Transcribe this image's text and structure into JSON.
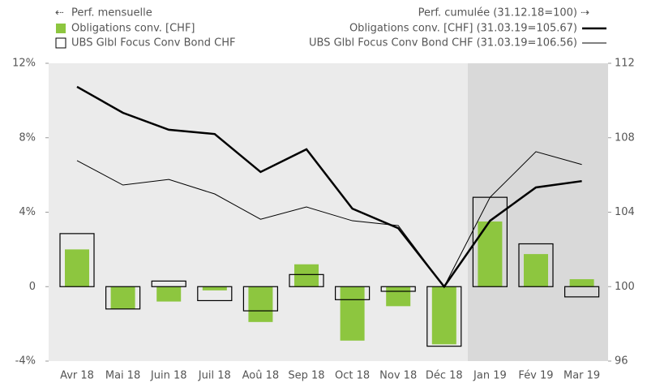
{
  "chart_data": {
    "type": "combo",
    "left_legend_title": "Perf. mensuelle",
    "right_legend_title": "Perf. cumulée (31.12.18=100)",
    "categories": [
      "Avr 18",
      "Mai 18",
      "Juin 18",
      "Juil 18",
      "Aoû 18",
      "Sep 18",
      "Oct 18",
      "Nov 18",
      "Déc 18",
      "Jan 19",
      "Fév 19",
      "Mar 19"
    ],
    "series": [
      {
        "name": "Obligations conv. [CHF]",
        "type": "bar",
        "style": "filled",
        "color": "#8dc63f",
        "axis": "y",
        "values": [
          2.0,
          -1.2,
          -0.8,
          -0.2,
          -1.9,
          1.2,
          -2.9,
          -1.05,
          -3.1,
          3.5,
          1.75,
          0.4
        ]
      },
      {
        "name": "UBS Glbl Focus Conv Bond CHF",
        "type": "bar",
        "style": "outline",
        "color": "#000000",
        "axis": "y",
        "values": [
          2.85,
          -1.2,
          0.3,
          -0.75,
          -1.3,
          0.65,
          -0.7,
          -0.25,
          -3.2,
          4.8,
          2.3,
          -0.55
        ]
      },
      {
        "name": "Obligations conv. [CHF] (31.03.19=105.67)",
        "type": "line",
        "line_width": 2.5,
        "color": "#000000",
        "axis": "y2",
        "values": [
          110.74,
          109.34,
          108.43,
          108.2,
          106.16,
          107.38,
          104.19,
          103.14,
          100,
          103.54,
          105.33,
          105.67
        ]
      },
      {
        "name": "UBS Glbl Focus Conv Bond CHF (31.03.19=106.56)",
        "type": "line",
        "line_width": 1,
        "color": "#000000",
        "axis": "y2",
        "values": [
          106.77,
          105.46,
          105.76,
          104.98,
          103.62,
          104.28,
          103.54,
          103.28,
          100,
          104.8,
          107.25,
          106.56
        ]
      }
    ],
    "ylim": [
      -4,
      12
    ],
    "yticks": [
      {
        "value": -4,
        "label": "-4%"
      },
      0,
      {
        "value": 4,
        "label": "4%"
      },
      {
        "value": 8,
        "label": "8%"
      },
      {
        "value": 12,
        "label": "12%"
      }
    ],
    "y2lim": [
      96,
      112
    ],
    "y2ticks": [
      96,
      100,
      104,
      108,
      112
    ]
  }
}
